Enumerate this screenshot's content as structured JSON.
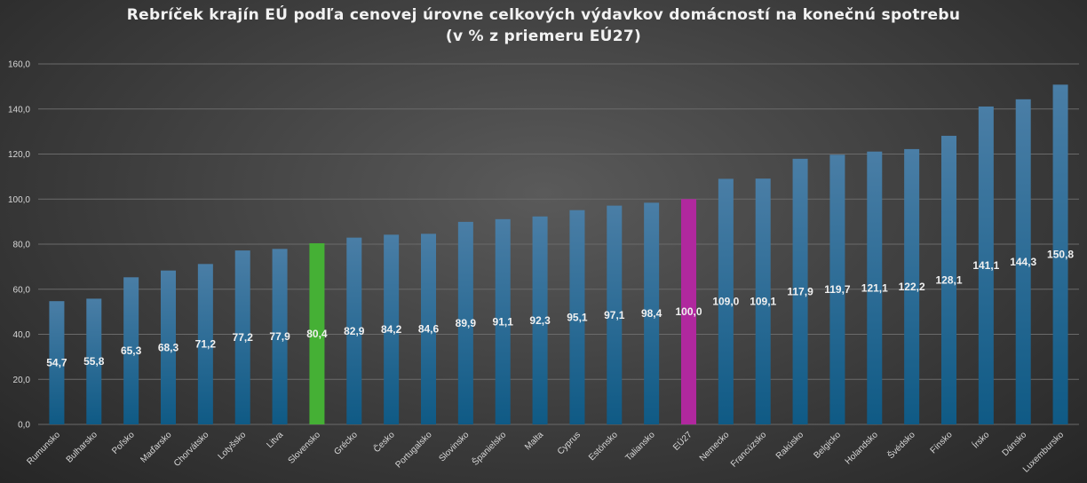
{
  "chart_data": {
    "type": "bar",
    "title_line1": "Rebríček krajín EÚ podľa cenovej úrovne celkových výdavkov domácností na konečnú spotrebu",
    "title_line2": "(v % z priemeru EÚ27)",
    "xlabel": "",
    "ylabel": "",
    "ylim": [
      0,
      160
    ],
    "yticks": [
      "0,0",
      "20,0",
      "40,0",
      "60,0",
      "80,0",
      "100,0",
      "120,0",
      "140,0",
      "160,0"
    ],
    "grid": true,
    "legend": "none",
    "categories": [
      "Rumunsko",
      "Bulharsko",
      "Poľsko",
      "Maďarsko",
      "Chorvátsko",
      "Lotyšsko",
      "Litva",
      "Slovensko",
      "Grécko",
      "Česko",
      "Portugalsko",
      "Slovinsko",
      "Španielsko",
      "Malta",
      "Cyprus",
      "Estónsko",
      "Taliansko",
      "EÚ27",
      "Nemecko",
      "Francúzsko",
      "Rakúsko",
      "Belgicko",
      "Holandsko",
      "Švédsko",
      "Fínsko",
      "Írsko",
      "Dánsko",
      "Luxembursko"
    ],
    "values": [
      54.7,
      55.8,
      65.3,
      68.3,
      71.2,
      77.2,
      77.9,
      80.4,
      82.9,
      84.2,
      84.6,
      89.9,
      91.1,
      92.3,
      95.1,
      97.1,
      98.4,
      100.0,
      109.0,
      109.1,
      117.9,
      119.7,
      121.1,
      122.2,
      128.1,
      141.1,
      144.3,
      150.8
    ],
    "value_labels": [
      "54,7",
      "55,8",
      "65,3",
      "68,3",
      "71,2",
      "77,2",
      "77,9",
      "80,4",
      "82,9",
      "84,2",
      "84,6",
      "89,9",
      "91,1",
      "92,3",
      "95,1",
      "97,1",
      "98,4",
      "100,0",
      "109,0",
      "109,1",
      "117,9",
      "119,7",
      "121,1",
      "122,2",
      "128,1",
      "141,1",
      "144,3",
      "150,8"
    ],
    "colors": {
      "default_bar_top": "#4a7ea6",
      "default_bar_bottom": "#0f5a85",
      "highlight_slovensko": "#45b035",
      "highlight_eu27": "#b0289e",
      "gridline": "#6a6a6a",
      "text": "#d9d9d9"
    },
    "highlights": {
      "Slovensko": "highlight_slovensko",
      "EÚ27": "highlight_eu27"
    }
  }
}
